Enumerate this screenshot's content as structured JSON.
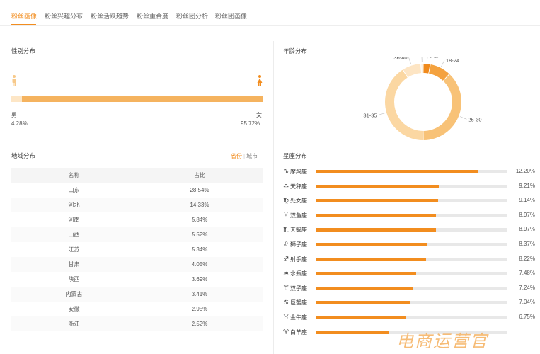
{
  "tabs": [
    {
      "label": "粉丝画像",
      "active": true
    },
    {
      "label": "粉丝兴趣分布",
      "active": false
    },
    {
      "label": "粉丝活跃趋势",
      "active": false
    },
    {
      "label": "粉丝重合度",
      "active": false
    },
    {
      "label": "粉丝团分析",
      "active": false
    },
    {
      "label": "粉丝团画像",
      "active": false
    }
  ],
  "gender": {
    "title": "性别分布",
    "male_label": "男",
    "male_pct": "4.28%",
    "female_label": "女",
    "female_pct": "95.72%",
    "male_share": 4.28
  },
  "region": {
    "title": "地域分布",
    "toggle_on": "省份",
    "toggle_sep": "|",
    "toggle_off": "城市",
    "headers": [
      "名称",
      "占比"
    ],
    "rows": [
      {
        "name": "山东",
        "pct": "28.54%"
      },
      {
        "name": "河北",
        "pct": "14.33%"
      },
      {
        "name": "河南",
        "pct": "5.84%"
      },
      {
        "name": "山西",
        "pct": "5.52%"
      },
      {
        "name": "江苏",
        "pct": "5.34%"
      },
      {
        "name": "甘肃",
        "pct": "4.05%"
      },
      {
        "name": "陕西",
        "pct": "3.69%"
      },
      {
        "name": "内蒙古",
        "pct": "3.41%"
      },
      {
        "name": "安徽",
        "pct": "2.95%"
      },
      {
        "name": "浙江",
        "pct": "2.52%"
      }
    ]
  },
  "age": {
    "title": "年龄分布",
    "segments": [
      {
        "label": "6-17",
        "value": 3,
        "color": "#f08a1c"
      },
      {
        "label": "18-24",
        "value": 9,
        "color": "#f4a23f"
      },
      {
        "label": "25-30",
        "value": 38,
        "color": "#f8c277"
      },
      {
        "label": "31-35",
        "value": 41,
        "color": "#fbd7a2"
      },
      {
        "label": "36-40",
        "value": 8,
        "color": "#fde5c4"
      },
      {
        "label": "41+",
        "value": 1,
        "color": "#fdf0dc"
      }
    ]
  },
  "constellation": {
    "title": "星座分布",
    "items": [
      {
        "icon": "♑",
        "name": "摩羯座",
        "pct": "12.20%",
        "value": 12.2
      },
      {
        "icon": "♎",
        "name": "天秤座",
        "pct": "9.21%",
        "value": 9.21
      },
      {
        "icon": "♍",
        "name": "处女座",
        "pct": "9.14%",
        "value": 9.14
      },
      {
        "icon": "♓",
        "name": "双鱼座",
        "pct": "8.97%",
        "value": 8.97
      },
      {
        "icon": "♏",
        "name": "天蝎座",
        "pct": "8.97%",
        "value": 8.97
      },
      {
        "icon": "♌",
        "name": "狮子座",
        "pct": "8.37%",
        "value": 8.37
      },
      {
        "icon": "♐",
        "name": "射手座",
        "pct": "8.22%",
        "value": 8.22
      },
      {
        "icon": "♒",
        "name": "水瓶座",
        "pct": "7.48%",
        "value": 7.48
      },
      {
        "icon": "♊",
        "name": "双子座",
        "pct": "7.24%",
        "value": 7.24
      },
      {
        "icon": "♋",
        "name": "巨蟹座",
        "pct": "7.04%",
        "value": 7.04
      },
      {
        "icon": "♉",
        "name": "金牛座",
        "pct": "6.75%",
        "value": 6.75
      },
      {
        "icon": "♈",
        "name": "白羊座",
        "pct": "",
        "value": 5.5
      }
    ],
    "scale_max": 14.3
  },
  "watermark": "电商运营官",
  "colors": {
    "accent": "#f28d1f",
    "track": "#e8e8e8"
  }
}
